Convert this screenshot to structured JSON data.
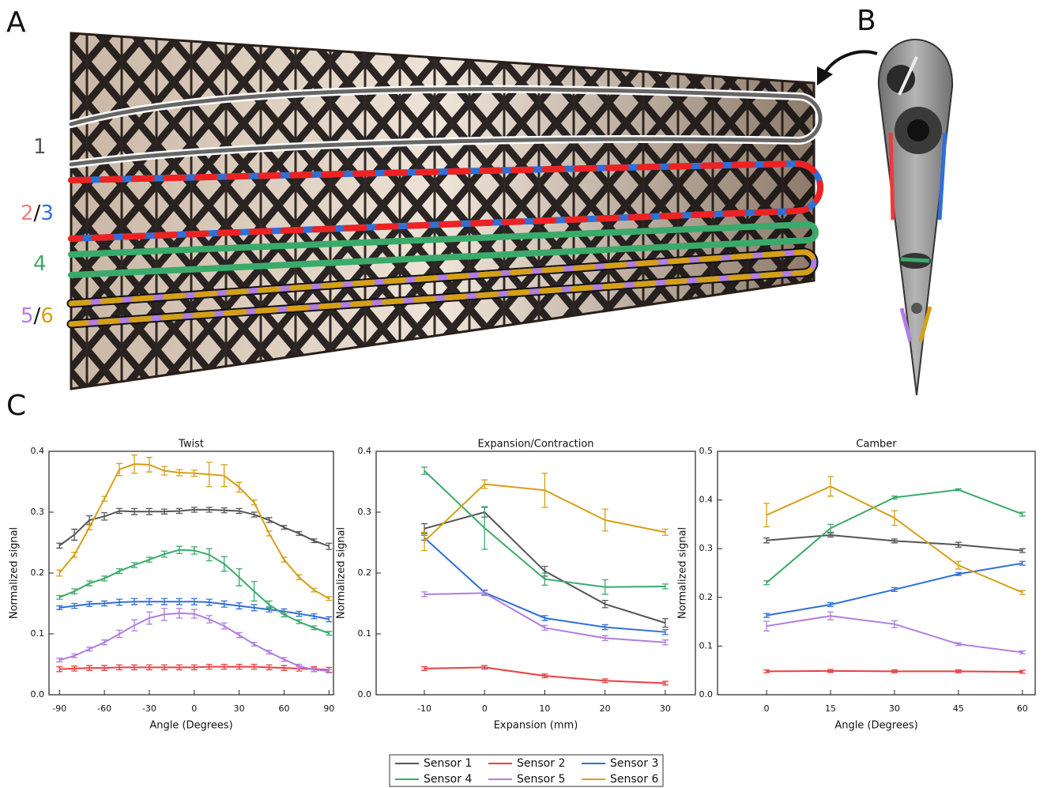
{
  "figure": {
    "panel_labels": [
      "A",
      "B",
      "C"
    ],
    "sensor_labels": [
      [
        "1"
      ],
      [
        "2",
        "/",
        "3"
      ],
      [
        "4"
      ],
      [
        "5",
        "/",
        "6"
      ]
    ]
  },
  "chart_data": [
    {
      "type": "line",
      "title": "Twist",
      "xlabel": "Angle (Degrees)",
      "ylabel": "Normalized signal",
      "x": [
        -90,
        -80,
        -70,
        -60,
        -50,
        -40,
        -30,
        -20,
        -10,
        0,
        10,
        20,
        30,
        40,
        50,
        60,
        70,
        80,
        90
      ],
      "xlim": [
        -97,
        93
      ],
      "xticks": [
        -90,
        -60,
        -30,
        0,
        30,
        60,
        90
      ],
      "ylim": [
        0,
        0.4
      ],
      "yticks": [
        {
          "value": 0,
          "label": "0.0"
        },
        0.1,
        0.2,
        0.3,
        0.4
      ],
      "grid": false,
      "legend": "bottom",
      "series": [
        {
          "name": "Sensor 1",
          "color": "#555555",
          "values": [
            0.245,
            0.263,
            0.287,
            0.293,
            0.302,
            0.301,
            0.301,
            0.301,
            0.302,
            0.304,
            0.304,
            0.303,
            0.302,
            0.296,
            0.287,
            0.275,
            0.265,
            0.253,
            0.244
          ],
          "errors": [
            0.004,
            0.009,
            0.007,
            0.006,
            0.004,
            0.005,
            0.005,
            0.004,
            0.004,
            0.004,
            0.004,
            0.004,
            0.004,
            0.004,
            0.004,
            0.003,
            0.003,
            0.003,
            0.005
          ]
        },
        {
          "name": "Sensor 2",
          "color": "#e84040",
          "values": [
            0.042,
            0.043,
            0.044,
            0.044,
            0.045,
            0.045,
            0.045,
            0.045,
            0.045,
            0.045,
            0.046,
            0.046,
            0.046,
            0.046,
            0.045,
            0.044,
            0.043,
            0.042,
            0.041
          ],
          "errors": [
            0.004,
            0.004,
            0.004,
            0.004,
            0.004,
            0.004,
            0.004,
            0.004,
            0.004,
            0.004,
            0.004,
            0.004,
            0.004,
            0.004,
            0.004,
            0.004,
            0.004,
            0.004,
            0.004
          ]
        },
        {
          "name": "Sensor 3",
          "color": "#2f6fd6",
          "values": [
            0.143,
            0.146,
            0.149,
            0.15,
            0.152,
            0.153,
            0.153,
            0.153,
            0.153,
            0.153,
            0.152,
            0.149,
            0.146,
            0.143,
            0.14,
            0.137,
            0.133,
            0.129,
            0.124
          ],
          "errors": [
            0.003,
            0.004,
            0.004,
            0.004,
            0.005,
            0.005,
            0.005,
            0.005,
            0.005,
            0.005,
            0.005,
            0.005,
            0.005,
            0.005,
            0.004,
            0.004,
            0.004,
            0.004,
            0.004
          ]
        },
        {
          "name": "Sensor 4",
          "color": "#3aaa6a",
          "values": [
            0.16,
            0.17,
            0.183,
            0.191,
            0.203,
            0.213,
            0.222,
            0.231,
            0.238,
            0.237,
            0.23,
            0.215,
            0.193,
            0.17,
            0.148,
            0.132,
            0.12,
            0.11,
            0.101
          ],
          "errors": [
            0.003,
            0.004,
            0.004,
            0.004,
            0.004,
            0.004,
            0.004,
            0.005,
            0.006,
            0.006,
            0.01,
            0.012,
            0.014,
            0.016,
            0.006,
            0.004,
            0.003,
            0.003,
            0.003
          ]
        },
        {
          "name": "Sensor 5",
          "color": "#b07ee0",
          "values": [
            0.057,
            0.064,
            0.075,
            0.086,
            0.1,
            0.114,
            0.126,
            0.132,
            0.134,
            0.133,
            0.124,
            0.113,
            0.098,
            0.083,
            0.07,
            0.058,
            0.047,
            0.041,
            0.039
          ],
          "errors": [
            0.003,
            0.003,
            0.003,
            0.004,
            0.006,
            0.009,
            0.01,
            0.01,
            0.008,
            0.007,
            0.006,
            0.005,
            0.004,
            0.003,
            0.003,
            0.003,
            0.003,
            0.003,
            0.003
          ]
        },
        {
          "name": "Sensor 6",
          "color": "#d4a017",
          "values": [
            0.2,
            0.23,
            0.275,
            0.322,
            0.37,
            0.379,
            0.378,
            0.368,
            0.365,
            0.364,
            0.362,
            0.36,
            0.341,
            0.316,
            0.265,
            0.222,
            0.193,
            0.172,
            0.158
          ],
          "errors": [
            0.005,
            0.004,
            0.004,
            0.004,
            0.01,
            0.015,
            0.012,
            0.007,
            0.005,
            0.005,
            0.02,
            0.018,
            0.008,
            0.004,
            0.004,
            0.004,
            0.004,
            0.003,
            0.003
          ]
        }
      ]
    },
    {
      "type": "line",
      "title": "Expansion/Contraction",
      "xlabel": "Expansion (mm)",
      "ylabel": "Normalized signal",
      "x": [
        -10,
        0,
        10,
        20,
        30
      ],
      "xlim": [
        -18,
        35
      ],
      "xticks": [
        -10,
        0,
        10,
        20,
        30
      ],
      "ylim": [
        0,
        0.4
      ],
      "yticks": [
        {
          "value": 0,
          "label": "0.0"
        },
        0.1,
        0.2,
        0.3,
        0.4
      ],
      "grid": false,
      "series": [
        {
          "name": "Sensor 1",
          "color": "#555555",
          "values": [
            0.273,
            0.3,
            0.203,
            0.149,
            0.118
          ],
          "errors": [
            0.008,
            0.008,
            0.008,
            0.006,
            0.007
          ]
        },
        {
          "name": "Sensor 2",
          "color": "#e84040",
          "values": [
            0.043,
            0.045,
            0.031,
            0.023,
            0.019
          ],
          "errors": [
            0.003,
            0.003,
            0.003,
            0.003,
            0.003
          ]
        },
        {
          "name": "Sensor 3",
          "color": "#2f6fd6",
          "values": [
            0.258,
            0.168,
            0.126,
            0.111,
            0.103
          ],
          "errors": [
            0.004,
            0.004,
            0.004,
            0.004,
            0.004
          ]
        },
        {
          "name": "Sensor 4",
          "color": "#3aaa6a",
          "values": [
            0.368,
            0.274,
            0.19,
            0.177,
            0.178
          ],
          "errors": [
            0.006,
            0.035,
            0.01,
            0.012,
            0.004
          ]
        },
        {
          "name": "Sensor 5",
          "color": "#b07ee0",
          "values": [
            0.165,
            0.167,
            0.11,
            0.093,
            0.086
          ],
          "errors": [
            0.004,
            0.004,
            0.004,
            0.004,
            0.004
          ]
        },
        {
          "name": "Sensor 6",
          "color": "#d4a017",
          "values": [
            0.252,
            0.346,
            0.336,
            0.287,
            0.267
          ],
          "errors": [
            0.015,
            0.007,
            0.028,
            0.018,
            0.005
          ]
        }
      ]
    },
    {
      "type": "line",
      "title": "Camber",
      "xlabel": "Angle (Degrees)",
      "ylabel": "Normalized signal",
      "x": [
        0,
        15,
        30,
        45,
        60
      ],
      "xlim": [
        -11.5,
        63
      ],
      "xticks": [
        0,
        15,
        30,
        45,
        60
      ],
      "ylim": [
        0,
        0.5
      ],
      "yticks": [
        {
          "value": 0,
          "label": "0.0"
        },
        0.1,
        0.2,
        0.3,
        0.4,
        0.5
      ],
      "grid": false,
      "series": [
        {
          "name": "Sensor 1",
          "color": "#555555",
          "values": [
            0.317,
            0.328,
            0.316,
            0.308,
            0.296
          ],
          "errors": [
            0.005,
            0.004,
            0.004,
            0.005,
            0.004
          ]
        },
        {
          "name": "Sensor 2",
          "color": "#e84040",
          "values": [
            0.048,
            0.049,
            0.048,
            0.048,
            0.047
          ],
          "errors": [
            0.003,
            0.003,
            0.003,
            0.003,
            0.003
          ]
        },
        {
          "name": "Sensor 3",
          "color": "#2f6fd6",
          "values": [
            0.163,
            0.185,
            0.216,
            0.248,
            0.27
          ],
          "errors": [
            0.004,
            0.004,
            0.004,
            0.003,
            0.004
          ]
        },
        {
          "name": "Sensor 4",
          "color": "#3aaa6a",
          "values": [
            0.23,
            0.342,
            0.405,
            0.421,
            0.371
          ],
          "errors": [
            0.004,
            0.008,
            0.003,
            0.002,
            0.004
          ]
        },
        {
          "name": "Sensor 5",
          "color": "#b07ee0",
          "values": [
            0.141,
            0.162,
            0.145,
            0.104,
            0.087
          ],
          "errors": [
            0.01,
            0.008,
            0.007,
            0.003,
            0.003
          ]
        },
        {
          "name": "Sensor 6",
          "color": "#d4a017",
          "values": [
            0.369,
            0.428,
            0.363,
            0.266,
            0.21
          ],
          "errors": [
            0.024,
            0.02,
            0.015,
            0.008,
            0.004
          ]
        }
      ]
    }
  ]
}
